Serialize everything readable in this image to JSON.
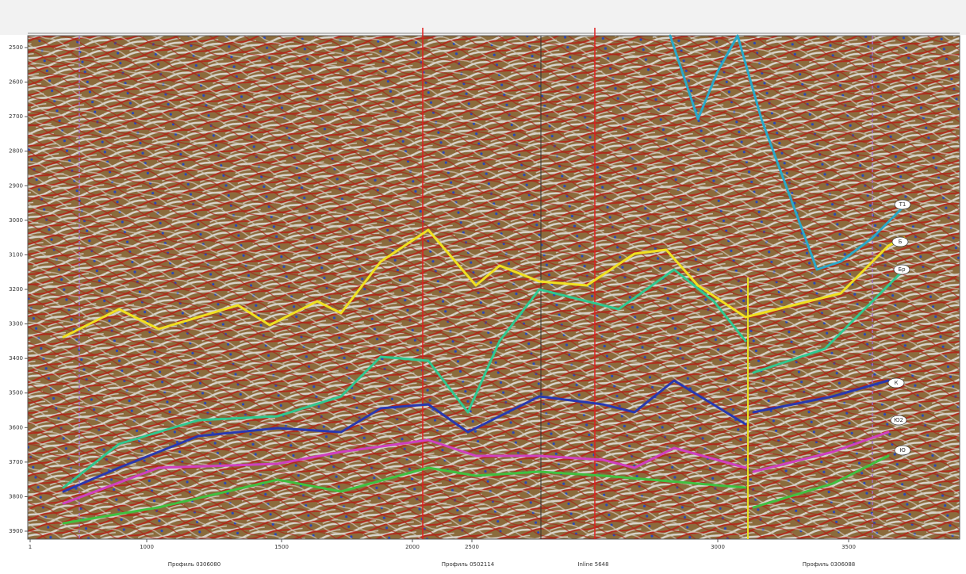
{
  "depth_labels": [
    "2500",
    "2600",
    "2700",
    "2800",
    "2900",
    "3000",
    "3100",
    "3200",
    "3300",
    "3400",
    "3500",
    "3600",
    "3700",
    "3800",
    "3900"
  ],
  "trace_labels": [
    "1",
    "1000",
    "1500",
    "2000",
    "2500",
    "3000",
    "3500"
  ],
  "profiles": [
    "Профиль 0306080",
    "Профиль 0502114",
    "Inline 5648",
    "Профиль 0306088"
  ],
  "horizons": [
    "Т1",
    "Б",
    "Бр",
    "К",
    "Ю2",
    "Ю"
  ]
}
